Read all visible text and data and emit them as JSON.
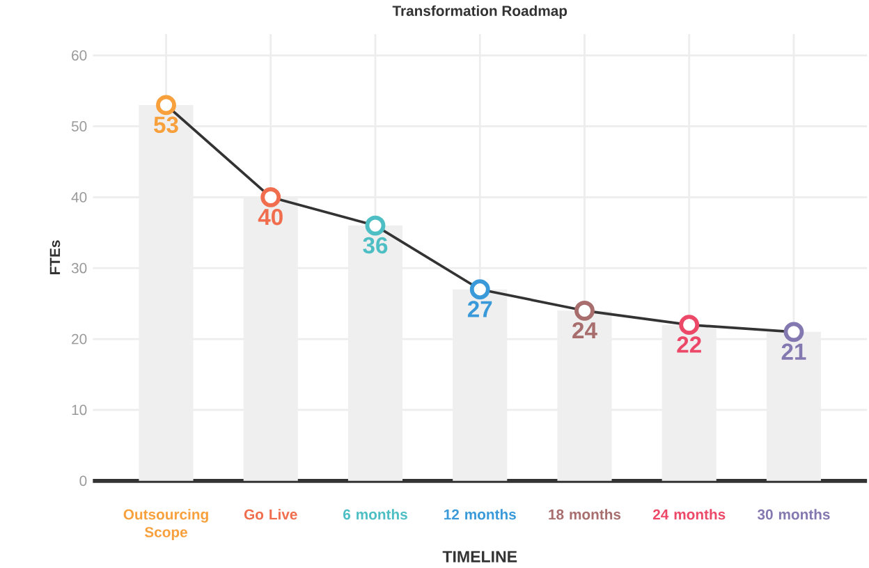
{
  "chart_data": {
    "type": "line",
    "title": "Transformation Roadmap",
    "xlabel": "TIMELINE",
    "ylabel": "FTEs",
    "categories": [
      "Outsourcing Scope",
      "Go Live",
      "6 months",
      "12 months",
      "18 months",
      "24 months",
      "30 months"
    ],
    "series": [
      {
        "type": "bar",
        "color": "#efefef",
        "values": [
          53,
          40,
          36,
          27,
          24,
          22,
          21
        ]
      },
      {
        "color": "#333333",
        "marker": "circle",
        "colors": [
          "#f7a03c",
          "#f06e4e",
          "#4dbfc4",
          "#3a9ad9",
          "#a86e6e",
          "#ec4867",
          "#8478b0"
        ],
        "values": [
          53,
          40,
          36,
          27,
          24,
          22,
          21
        ],
        "value_labels": [
          "53",
          "40",
          "36",
          "27",
          "24",
          "22",
          "21"
        ]
      }
    ],
    "ylim": [
      0,
      63
    ],
    "yticks": [
      0,
      10,
      20,
      30,
      40,
      50,
      60
    ],
    "grid": true
  }
}
